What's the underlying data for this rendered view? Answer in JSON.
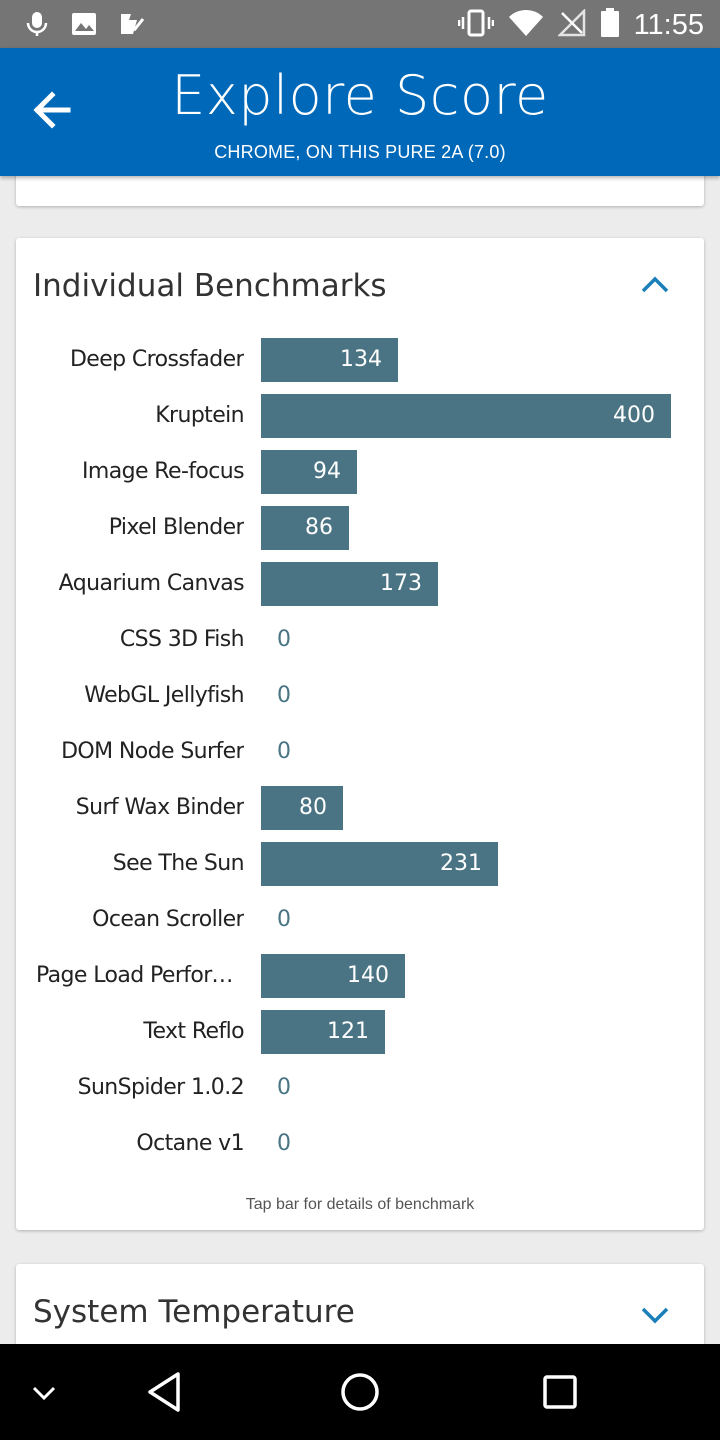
{
  "status_bar": {
    "time": "11:55"
  },
  "app_bar": {
    "title": "Explore Score",
    "subtitle": "CHROME, ON THIS PURE 2A (7.0)"
  },
  "benchmarks": {
    "title": "Individual Benchmarks",
    "hint": "Tap bar for details of benchmark",
    "max_value": 400,
    "items": [
      {
        "label": "Deep Crossfader",
        "value": 134
      },
      {
        "label": "Kruptein",
        "value": 400
      },
      {
        "label": "Image Re-focus",
        "value": 94
      },
      {
        "label": "Pixel Blender",
        "value": 86
      },
      {
        "label": "Aquarium Canvas",
        "value": 173
      },
      {
        "label": "CSS 3D Fish",
        "value": 0
      },
      {
        "label": "WebGL Jellyfish",
        "value": 0
      },
      {
        "label": "DOM Node Surfer",
        "value": 0
      },
      {
        "label": "Surf Wax Binder",
        "value": 80
      },
      {
        "label": "See The Sun",
        "value": 231
      },
      {
        "label": "Ocean Scroller",
        "value": 0
      },
      {
        "label": "Page Load Perform…",
        "value": 140
      },
      {
        "label": "Text Reflo",
        "value": 121
      },
      {
        "label": "SunSpider 1.0.2",
        "value": 0
      },
      {
        "label": "Octane v1",
        "value": 0
      }
    ]
  },
  "system_temperature": {
    "title": "System Temperature"
  },
  "colors": {
    "app_bar": "#0068b8",
    "bar": "#4a7484",
    "accent": "#1a7fb8"
  }
}
